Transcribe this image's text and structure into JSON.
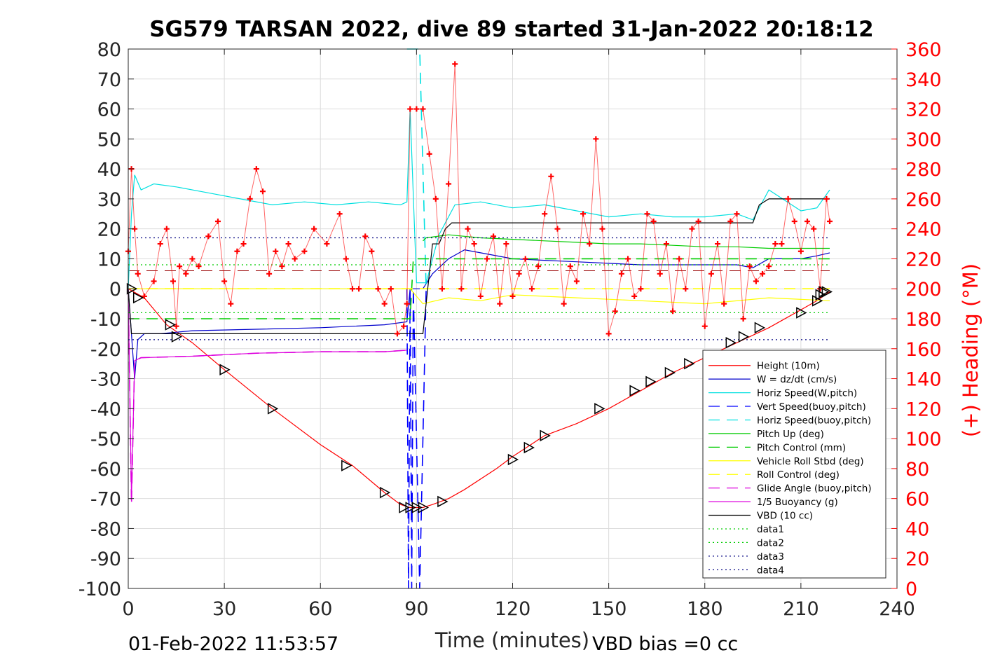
{
  "chart_data": {
    "type": "line",
    "title": "SG579 TARSAN 2022, dive 89 started 31-Jan-2022 20:18:12",
    "xlabel": "Time (minutes)",
    "ylabel_right": "(+) Heading (°M)",
    "xlim": [
      0,
      240
    ],
    "ylim": [
      -100,
      80
    ],
    "ylim_right": [
      0,
      360
    ],
    "x_ticks": [
      "0",
      "30",
      "60",
      "90",
      "120",
      "150",
      "180",
      "210",
      "240"
    ],
    "y_ticks": [
      "80",
      "70",
      "60",
      "50",
      "40",
      "30",
      "20",
      "10",
      "0",
      "-10",
      "-20",
      "-30",
      "-40",
      "-50",
      "-60",
      "-70",
      "-80",
      "-90",
      "-100"
    ],
    "y_ticks_right": [
      "360",
      "340",
      "320",
      "300",
      "280",
      "260",
      "240",
      "220",
      "200",
      "180",
      "160",
      "140",
      "120",
      "100",
      "80",
      "60",
      "40",
      "20",
      "0"
    ],
    "grid": true,
    "legend_position": "bottom-right",
    "footer_left": "01-Feb-2022 11:53:57",
    "footer_right": "VBD bias =0 cc",
    "series": [
      {
        "name": "Height (10m)",
        "color": "#ff0000",
        "style": "solid",
        "x": [
          0,
          5,
          12,
          20,
          30,
          45,
          60,
          70,
          80,
          85,
          88,
          92,
          95,
          100,
          105,
          115,
          120,
          130,
          140,
          150,
          160,
          170,
          180,
          190,
          200,
          210,
          215,
          219
        ],
        "y": [
          0,
          -3,
          -12,
          -18,
          -27,
          -40,
          -52,
          -59,
          -68,
          -72,
          -73,
          -73,
          -72,
          -70,
          -67,
          -60,
          -56,
          -49,
          -45,
          -40,
          -34,
          -28,
          -23,
          -18,
          -13,
          -7,
          -4,
          -1
        ]
      },
      {
        "name": "W = dz/dt (cm/s)",
        "color": "#0000cc",
        "style": "solid",
        "x": [
          0,
          2,
          3,
          5,
          10,
          20,
          40,
          60,
          70,
          80,
          87,
          88,
          92,
          95,
          100,
          105,
          110,
          120,
          130,
          140,
          150,
          160,
          170,
          180,
          190,
          195,
          200,
          210,
          215,
          219
        ],
        "y": [
          0,
          -30,
          -17,
          -15,
          -15,
          -14,
          -13.5,
          -13,
          -12.5,
          -12,
          -11,
          0,
          0,
          5,
          10,
          13,
          12,
          10,
          9.5,
          9,
          8.5,
          8,
          8,
          8,
          8,
          7,
          10,
          10,
          11,
          12
        ]
      },
      {
        "name": "Horiz Speed(W,pitch)",
        "color": "#00e0e0",
        "style": "solid",
        "x": [
          0,
          1,
          2,
          4,
          8,
          15,
          25,
          35,
          45,
          55,
          65,
          75,
          85,
          87,
          88,
          90,
          93,
          97,
          102,
          110,
          120,
          130,
          140,
          150,
          160,
          170,
          180,
          190,
          195,
          200,
          210,
          215,
          219
        ],
        "y": [
          0,
          25,
          38,
          33,
          35,
          34,
          32,
          30,
          28,
          29,
          28,
          29,
          28,
          29,
          60,
          2,
          2,
          18,
          28,
          29,
          27,
          28,
          26,
          24,
          25,
          24,
          24,
          25,
          23,
          33,
          26,
          27,
          33
        ]
      },
      {
        "name": "Vert Speed(buoy,pitch)",
        "color": "#0000ff",
        "style": "dashed",
        "x": [
          87,
          87.5,
          88,
          88.5,
          89,
          91,
          93
        ],
        "y": [
          0,
          -100,
          0,
          -100,
          0,
          -100,
          0
        ]
      },
      {
        "name": "Horiz Speed(buoy,pitch)",
        "color": "#00e0e0",
        "style": "dashed",
        "x": [
          87,
          88,
          89,
          91,
          93
        ],
        "y": [
          80,
          80,
          80,
          80,
          0
        ]
      },
      {
        "name": "Pitch Up (deg)",
        "color": "#00cc00",
        "style": "solid",
        "x": [
          92,
          93,
          100,
          110,
          120,
          130,
          140,
          150,
          160,
          170,
          180,
          190,
          200,
          210,
          219
        ],
        "y": [
          16,
          17,
          18,
          17,
          16.5,
          16,
          15.5,
          15,
          15,
          14.5,
          14,
          14,
          13.5,
          13.5,
          13.5
        ]
      },
      {
        "name": "Pitch Control (mm)",
        "color": "#00cc00",
        "style": "dashed",
        "x": [
          0,
          88,
          89,
          219
        ],
        "y": [
          -10,
          -10,
          10,
          10
        ]
      },
      {
        "name": "Vehicle Roll Stbd (deg)",
        "color": "#ffff00",
        "style": "solid",
        "x": [
          0,
          5,
          20,
          40,
          60,
          80,
          88,
          92,
          100,
          110,
          120,
          140,
          160,
          180,
          200,
          219
        ],
        "y": [
          0,
          0,
          0,
          0,
          0,
          0,
          0,
          -5,
          -3,
          -4,
          -2,
          -3,
          -4,
          -5,
          -3,
          -4
        ]
      },
      {
        "name": "Roll Control (deg)",
        "color": "#ffff00",
        "style": "dashed",
        "x": [
          0,
          219
        ],
        "y": [
          0,
          0
        ]
      },
      {
        "name": "Glide Angle (buoy,pitch)",
        "color": "#dd00dd",
        "style": "dashed",
        "x": [
          0,
          1,
          2,
          4,
          20,
          40,
          60,
          80,
          87
        ],
        "y": [
          0,
          -72,
          -24,
          -23,
          -22.5,
          -21.5,
          -21,
          -21,
          -20.5
        ]
      },
      {
        "name": "1/5 Buoyancy (g)",
        "color": "#dd00dd",
        "style": "solid",
        "x": [
          0,
          1,
          2,
          4,
          20,
          40,
          60,
          80,
          87
        ],
        "y": [
          0,
          -70,
          -24,
          -23,
          -22.5,
          -21.5,
          -21,
          -21,
          -20.5
        ]
      },
      {
        "name": "VBD (10 cc)",
        "color": "#000000",
        "style": "solid",
        "x": [
          0,
          1,
          3,
          80,
          88,
          92,
          95,
          97,
          99,
          101,
          195,
          197,
          200,
          219
        ],
        "y": [
          0,
          -15,
          -15,
          -15,
          -15,
          -15,
          15,
          15,
          20,
          22,
          22,
          28,
          30,
          30
        ]
      },
      {
        "name": "data1",
        "color": "#00cc00",
        "style": "dotted",
        "x": [
          0,
          219
        ],
        "y": [
          8,
          8
        ]
      },
      {
        "name": "data2",
        "color": "#00cc00",
        "style": "dotted",
        "x": [
          0,
          219
        ],
        "y": [
          -8,
          -8
        ]
      },
      {
        "name": "data3",
        "color": "#000080",
        "style": "dotted",
        "x": [
          0,
          219
        ],
        "y": [
          17,
          17
        ]
      },
      {
        "name": "data4",
        "color": "#000080",
        "style": "dotted",
        "x": [
          0,
          219
        ],
        "y": [
          -17,
          -17
        ]
      }
    ],
    "reference_lines": [
      {
        "color": "#990000",
        "style": "dashed",
        "y": 6,
        "x": [
          0,
          219
        ]
      }
    ],
    "heading": {
      "color": "#ff0000",
      "marker": "+",
      "axis": "right",
      "x": [
        0,
        1,
        2,
        3,
        5,
        8,
        10,
        12,
        14,
        15,
        16,
        18,
        20,
        22,
        25,
        28,
        30,
        32,
        34,
        36,
        38,
        40,
        42,
        44,
        46,
        48,
        50,
        52,
        55,
        58,
        62,
        66,
        68,
        70,
        72,
        74,
        76,
        78,
        80,
        82,
        84,
        86,
        87,
        88,
        90,
        92,
        94,
        96,
        98,
        100,
        102,
        104,
        106,
        108,
        110,
        112,
        114,
        116,
        118,
        120,
        122,
        124,
        126,
        128,
        130,
        132,
        134,
        136,
        138,
        140,
        142,
        144,
        146,
        148,
        150,
        152,
        154,
        156,
        158,
        160,
        162,
        164,
        166,
        168,
        170,
        172,
        174,
        176,
        178,
        180,
        182,
        184,
        186,
        188,
        190,
        192,
        194,
        196,
        198,
        200,
        202,
        204,
        206,
        208,
        210,
        212,
        214,
        216,
        218,
        219
      ],
      "y": [
        225,
        280,
        240,
        210,
        195,
        205,
        230,
        240,
        205,
        175,
        215,
        210,
        220,
        215,
        235,
        245,
        205,
        190,
        225,
        230,
        260,
        280,
        265,
        210,
        225,
        215,
        230,
        220,
        225,
        240,
        230,
        250,
        220,
        200,
        200,
        235,
        225,
        200,
        190,
        200,
        170,
        175,
        190,
        320,
        320,
        320,
        290,
        260,
        200,
        270,
        350,
        200,
        240,
        230,
        195,
        220,
        235,
        190,
        230,
        195,
        210,
        220,
        200,
        215,
        250,
        275,
        240,
        190,
        215,
        205,
        250,
        230,
        300,
        240,
        170,
        185,
        210,
        220,
        195,
        200,
        250,
        245,
        210,
        230,
        185,
        220,
        200,
        240,
        245,
        175,
        210,
        230,
        190,
        245,
        250,
        180,
        215,
        205,
        210,
        215,
        230,
        230,
        260,
        245,
        225,
        245,
        240,
        200,
        260,
        245
      ]
    },
    "markers": {
      "name": "triangles",
      "color": "#000000",
      "x": [
        1,
        3,
        13,
        15,
        30,
        45,
        68,
        80,
        86,
        88,
        90,
        92,
        98,
        120,
        125,
        130,
        147,
        158,
        163,
        169,
        175,
        188,
        192,
        197,
        210,
        215,
        216,
        217,
        218
      ],
      "y": [
        0,
        -3,
        -12,
        -16,
        -27,
        -40,
        -59,
        -68,
        -73,
        -73,
        -73,
        -73,
        -71,
        -57,
        -53,
        -49,
        -40,
        -34,
        -31,
        -28,
        -25,
        -18,
        -16,
        -13,
        -8,
        -4,
        -2,
        -1,
        -1
      ]
    }
  }
}
